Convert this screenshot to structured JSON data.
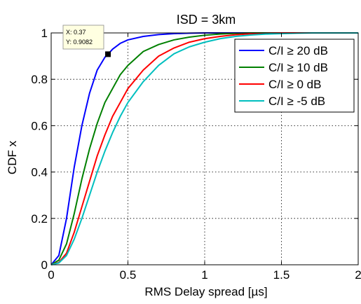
{
  "chart_data": {
    "type": "line",
    "title": "ISD = 3km",
    "xlabel": "RMS Delay spread [µs]",
    "ylabel": "CDF x",
    "xlim": [
      0,
      2
    ],
    "ylim": [
      0,
      1
    ],
    "xticks": [
      0,
      0.5,
      1,
      1.5,
      2
    ],
    "xtick_labels": [
      "0",
      "0.5",
      "1",
      "1.5",
      "2"
    ],
    "yticks": [
      0,
      0.2,
      0.4,
      0.6,
      0.8,
      1
    ],
    "ytick_labels": [
      "0",
      "0.2",
      "0.4",
      "0.6",
      "0.8",
      "1"
    ],
    "grid": true,
    "legend_position": "top-right",
    "series": [
      {
        "name": "C/I ≥ 20 dB",
        "color": "#0000ff",
        "x": [
          0,
          0.05,
          0.1,
          0.15,
          0.2,
          0.25,
          0.3,
          0.35,
          0.37,
          0.4,
          0.45,
          0.5,
          0.6,
          0.7,
          0.8,
          0.9,
          1.0,
          1.1,
          1.2
        ],
        "y": [
          0,
          0.04,
          0.2,
          0.42,
          0.6,
          0.74,
          0.84,
          0.895,
          0.9082,
          0.93,
          0.955,
          0.97,
          0.985,
          0.993,
          0.997,
          0.999,
          1.0,
          1.0,
          1.0
        ]
      },
      {
        "name": "C/I ≥ 10 dB",
        "color": "#008000",
        "x": [
          0,
          0.05,
          0.1,
          0.15,
          0.2,
          0.25,
          0.3,
          0.35,
          0.4,
          0.45,
          0.5,
          0.6,
          0.7,
          0.8,
          0.9,
          1.0,
          1.1,
          1.2,
          1.3,
          1.4
        ],
        "y": [
          0,
          0.02,
          0.09,
          0.22,
          0.37,
          0.5,
          0.61,
          0.7,
          0.76,
          0.82,
          0.86,
          0.92,
          0.95,
          0.97,
          0.982,
          0.99,
          0.995,
          0.998,
          1.0,
          1.0
        ]
      },
      {
        "name": "C/I ≥ 0 dB",
        "color": "#ff0000",
        "x": [
          0,
          0.05,
          0.1,
          0.15,
          0.2,
          0.25,
          0.3,
          0.35,
          0.4,
          0.45,
          0.5,
          0.6,
          0.7,
          0.8,
          0.9,
          1.0,
          1.1,
          1.2,
          1.3,
          1.4,
          1.5
        ],
        "y": [
          0,
          0.01,
          0.05,
          0.14,
          0.25,
          0.36,
          0.47,
          0.56,
          0.64,
          0.7,
          0.76,
          0.84,
          0.9,
          0.935,
          0.96,
          0.975,
          0.985,
          0.992,
          0.996,
          0.999,
          1.0
        ]
      },
      {
        "name": "C/I ≥ -5 dB",
        "color": "#00bfbf",
        "x": [
          0,
          0.05,
          0.1,
          0.15,
          0.2,
          0.25,
          0.3,
          0.35,
          0.4,
          0.45,
          0.5,
          0.6,
          0.7,
          0.8,
          0.9,
          1.0,
          1.1,
          1.2,
          1.3,
          1.4,
          1.5,
          1.6,
          1.7
        ],
        "y": [
          0,
          0.008,
          0.04,
          0.11,
          0.2,
          0.3,
          0.4,
          0.49,
          0.57,
          0.64,
          0.7,
          0.79,
          0.86,
          0.91,
          0.94,
          0.96,
          0.975,
          0.985,
          0.991,
          0.995,
          0.997,
          0.999,
          1.0
        ]
      }
    ],
    "datatip": {
      "x": 0.37,
      "y": 0.9082,
      "label_x": "X: 0.37",
      "label_y": "Y: 0.9082"
    }
  }
}
